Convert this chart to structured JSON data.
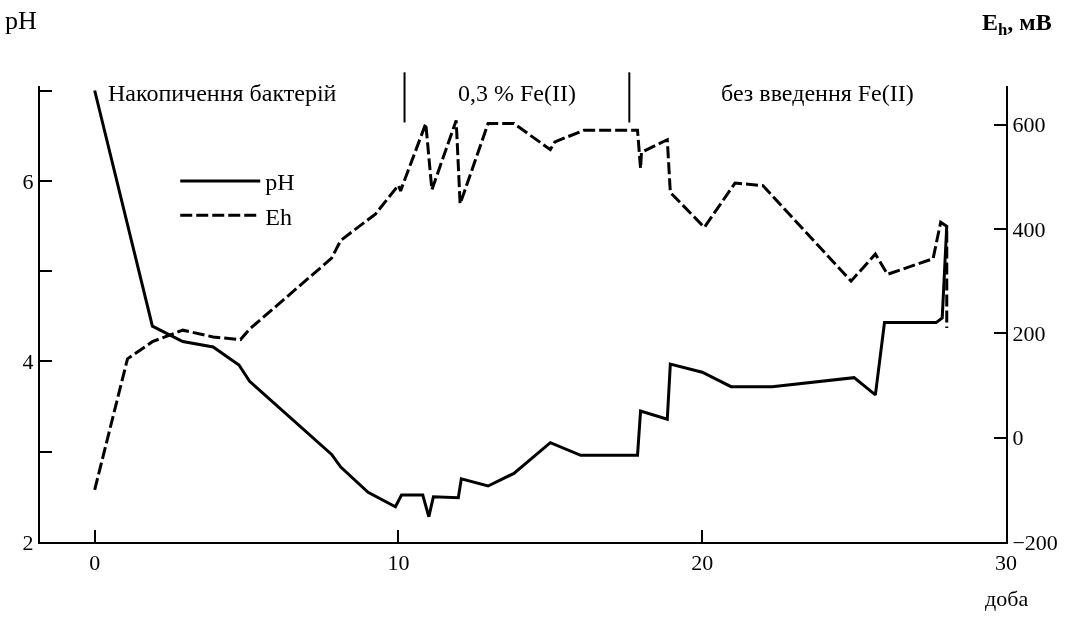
{
  "chart_data": {
    "type": "line",
    "xlabel": "доба",
    "ylabel": "pH",
    "y2label": "E$_{h}$, мВ",
    "series": [
      {
        "name": "pH",
        "color": "#000000",
        "line_style": "solid",
        "axis": "y",
        "x": [
          0,
          1.9,
          2.9,
          3.9,
          4.75,
          5.1,
          7.8,
          8.1,
          9.0,
          9.9,
          10.1,
          10.8,
          11.0,
          11.15,
          11.97,
          12.07,
          12.95,
          13.8,
          15.0,
          16.0,
          17.87,
          17.97,
          18.85,
          18.95,
          20.0,
          20.95,
          22.3,
          25.0,
          25.7,
          26.0,
          27.7,
          27.9,
          28.05
        ],
        "values": [
          7.0,
          4.39,
          4.22,
          4.16,
          3.96,
          3.78,
          2.97,
          2.83,
          2.55,
          2.39,
          2.52,
          2.52,
          2.28,
          2.5,
          2.49,
          2.7,
          2.62,
          2.76,
          3.1,
          2.96,
          2.96,
          3.45,
          3.36,
          3.97,
          3.88,
          3.72,
          3.72,
          3.82,
          3.63,
          4.43,
          4.43,
          4.48,
          5.5
        ]
      },
      {
        "name": "Eh",
        "color": "#000000",
        "line_style": "dashed",
        "axis": "y2",
        "x": [
          0,
          1.08,
          1.9,
          2.9,
          3.9,
          4.8,
          5.1,
          7.8,
          8.1,
          9.25,
          10.0,
          10.07,
          10.9,
          11.1,
          11.9,
          12.03,
          12.95,
          13.8,
          15.0,
          15.15,
          16.1,
          17.87,
          17.97,
          18.0,
          18.85,
          18.95,
          20.07,
          21.08,
          22.0,
          24.9,
          25.7,
          26.1,
          27.6,
          27.85,
          28.05,
          28.05
        ],
        "values": [
          -100,
          151,
          184,
          206,
          193,
          188,
          208,
          344,
          378,
          429,
          484,
          473,
          602,
          475,
          608,
          448,
          602,
          602,
          552,
          567,
          589,
          589,
          516,
          547,
          571,
          470,
          403,
          488,
          483,
          300,
          352,
          313,
          343,
          413,
          405,
          210
        ]
      }
    ],
    "xlim": [
      -1.8,
      30
    ],
    "xticks": [
      0,
      10,
      20,
      30
    ],
    "ylim": [
      2,
      7.05
    ],
    "yticks": [
      2,
      {
        "value": 3,
        "label": null
      },
      4,
      {
        "value": 5,
        "label": null
      },
      6,
      {
        "value": 7,
        "label": null
      }
    ],
    "y2lim": [
      -200,
      674
    ],
    "y2ticks": [
      -200,
      0,
      200,
      400,
      600
    ],
    "ref_lines": [
      {
        "axis": "x",
        "value": 10.2
      },
      {
        "axis": "x",
        "value": 17.6
      }
    ],
    "annotations": [
      "Накопичення бактерій",
      "0,3 % Fe(II)",
      "без введення Fe(II)"
    ],
    "legend": "top left",
    "marker": "none"
  }
}
